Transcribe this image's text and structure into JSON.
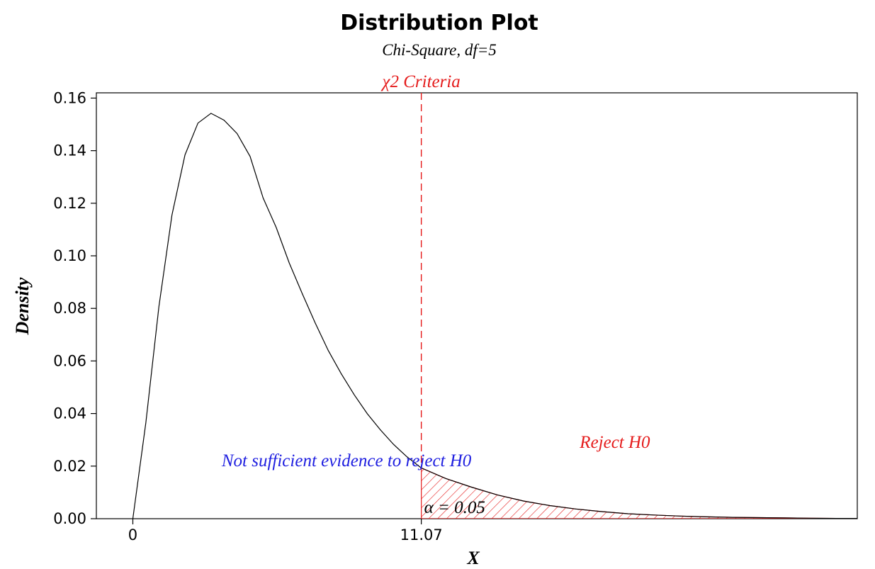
{
  "chart_data": {
    "type": "area",
    "title": "Distribution Plot",
    "subtitle": "Chi-Square, df=5",
    "distribution": "chi-square",
    "df": 5,
    "xlabel": "X",
    "ylabel": "Density",
    "xlim": [
      -1.4,
      27.8
    ],
    "ylim": [
      0,
      0.162
    ],
    "y_ticks": [
      "0.00",
      "0.02",
      "0.04",
      "0.06",
      "0.08",
      "0.10",
      "0.12",
      "0.14",
      "0.16"
    ],
    "x_ticks": [
      {
        "value": 0,
        "label": "0"
      },
      {
        "value": 11.07,
        "label": "11.07"
      }
    ],
    "series": [
      {
        "x": [
          0,
          0.5,
          1,
          1.5,
          2,
          2.5,
          3,
          3.5,
          4,
          4.5,
          5,
          5.5,
          6,
          6.5,
          7,
          7.5,
          8,
          8.5,
          9,
          9.5,
          10,
          10.5,
          11,
          11.07,
          12,
          13,
          14,
          15,
          16,
          17,
          18,
          19,
          20,
          21,
          22,
          23,
          24,
          25,
          26,
          27,
          27.8
        ],
        "values": [
          0,
          0.0366,
          0.0807,
          0.1155,
          0.1384,
          0.1505,
          0.1542,
          0.1516,
          0.1465,
          0.1378,
          0.122,
          0.1108,
          0.0973,
          0.0856,
          0.0744,
          0.064,
          0.0551,
          0.0471,
          0.0399,
          0.0338,
          0.0283,
          0.0237,
          0.0198,
          0.0193,
          0.0153,
          0.012,
          0.009,
          0.0067,
          0.005,
          0.0037,
          0.0027,
          0.0019,
          0.0014,
          0.001,
          0.0007,
          0.0005,
          0.0004,
          0.0003,
          0.0002,
          0.0001,
          0.0001
        ]
      }
    ],
    "critical_value": 11.07,
    "critical_label": "χ2 Criteria",
    "shaded_region": {
      "from": 11.07,
      "label": "α = 0.05",
      "alpha": 0.05
    },
    "annotations": [
      {
        "text": "Not sufficient evidence to reject H0",
        "x": 8.2,
        "y": 0.02,
        "color": "#1f1fe0"
      },
      {
        "text": "Reject H0",
        "x": 18.5,
        "y": 0.027,
        "color": "#e51c1c"
      }
    ],
    "colors": {
      "curve": "#000000",
      "critical": "#e51c1c",
      "hatch": "#e51c1c",
      "accept": "#1f1fe0",
      "reject": "#e51c1c"
    }
  }
}
